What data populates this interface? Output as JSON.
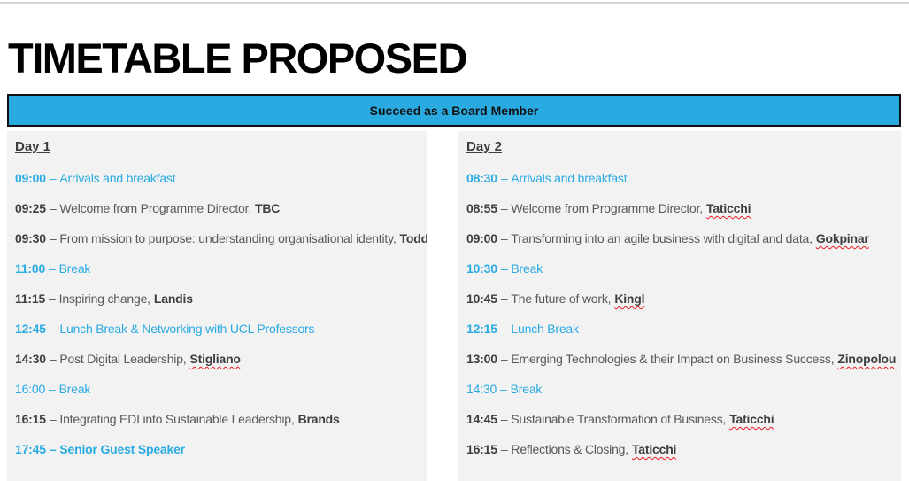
{
  "page": {
    "title": "TIMETABLE PROPOSED"
  },
  "banner": {
    "text": "Succeed as a Board Member"
  },
  "separator": "–",
  "days": [
    {
      "label": "Day 1",
      "rows": [
        {
          "time": "09:00",
          "desc": "Arrivals and breakfast",
          "highlight": true
        },
        {
          "time": "09:25",
          "desc": "Welcome from Programme Director,",
          "name": "TBC"
        },
        {
          "time": "09:30",
          "desc": "From mission to purpose: understanding organisational identity,",
          "name": "Todd"
        },
        {
          "time": "11:00",
          "desc": "Break",
          "highlight": true
        },
        {
          "time": "11:15",
          "desc": "Inspiring change,",
          "name": "Landis"
        },
        {
          "time": "12:45",
          "desc": "Lunch Break & Networking with UCL Professors",
          "highlight": true
        },
        {
          "time": "14:30",
          "desc": "Post Digital Leadership,",
          "name": "Stigliano",
          "misspelled": true
        },
        {
          "time": "16:00",
          "desc": "Break",
          "highlight": true,
          "time_bold": false
        },
        {
          "time": "16:15",
          "desc": "Integrating EDI into Sustainable Leadership,",
          "name": "Brands"
        },
        {
          "time": "17:45",
          "desc": "Senior Guest Speaker",
          "highlight": true,
          "all_bold": true
        }
      ]
    },
    {
      "label": "Day 2",
      "rows": [
        {
          "time": "08:30",
          "desc": "Arrivals and breakfast",
          "highlight": true
        },
        {
          "time": "08:55",
          "desc": "Welcome from Programme Director,",
          "name": "Taticchi",
          "misspelled": true
        },
        {
          "time": "09:00",
          "desc": "Transforming into an agile business with digital and data,",
          "name": "Gokpinar",
          "misspelled": true
        },
        {
          "time": "10:30",
          "desc": "Break",
          "highlight": true
        },
        {
          "time": "10:45",
          "desc": "The future of work,",
          "name": "Kingl",
          "misspelled": true
        },
        {
          "time": "12:15",
          "desc": "Lunch Break",
          "highlight": true
        },
        {
          "time": "13:00",
          "desc": "Emerging Technologies & their Impact on Business Success,",
          "name": "Zinopolou",
          "misspelled": true
        },
        {
          "time": "14:30",
          "desc": "Break",
          "highlight": true,
          "time_bold": false
        },
        {
          "time": "14:45",
          "desc": "Sustainable Transformation of Business,",
          "name": "Taticchi",
          "misspelled": true
        },
        {
          "time": "16:15",
          "desc": "Reflections & Closing,",
          "name": "Taticchi",
          "misspelled": true
        }
      ]
    }
  ],
  "colors": {
    "accent_cyan": "#29ABE2",
    "banner_border": "#101010",
    "text_regular": "#58585B",
    "text_bold": "#3E3E40",
    "squiggle_red": "#EC1C24",
    "column_background": "#F2F2F3",
    "title_black": "#000000"
  }
}
